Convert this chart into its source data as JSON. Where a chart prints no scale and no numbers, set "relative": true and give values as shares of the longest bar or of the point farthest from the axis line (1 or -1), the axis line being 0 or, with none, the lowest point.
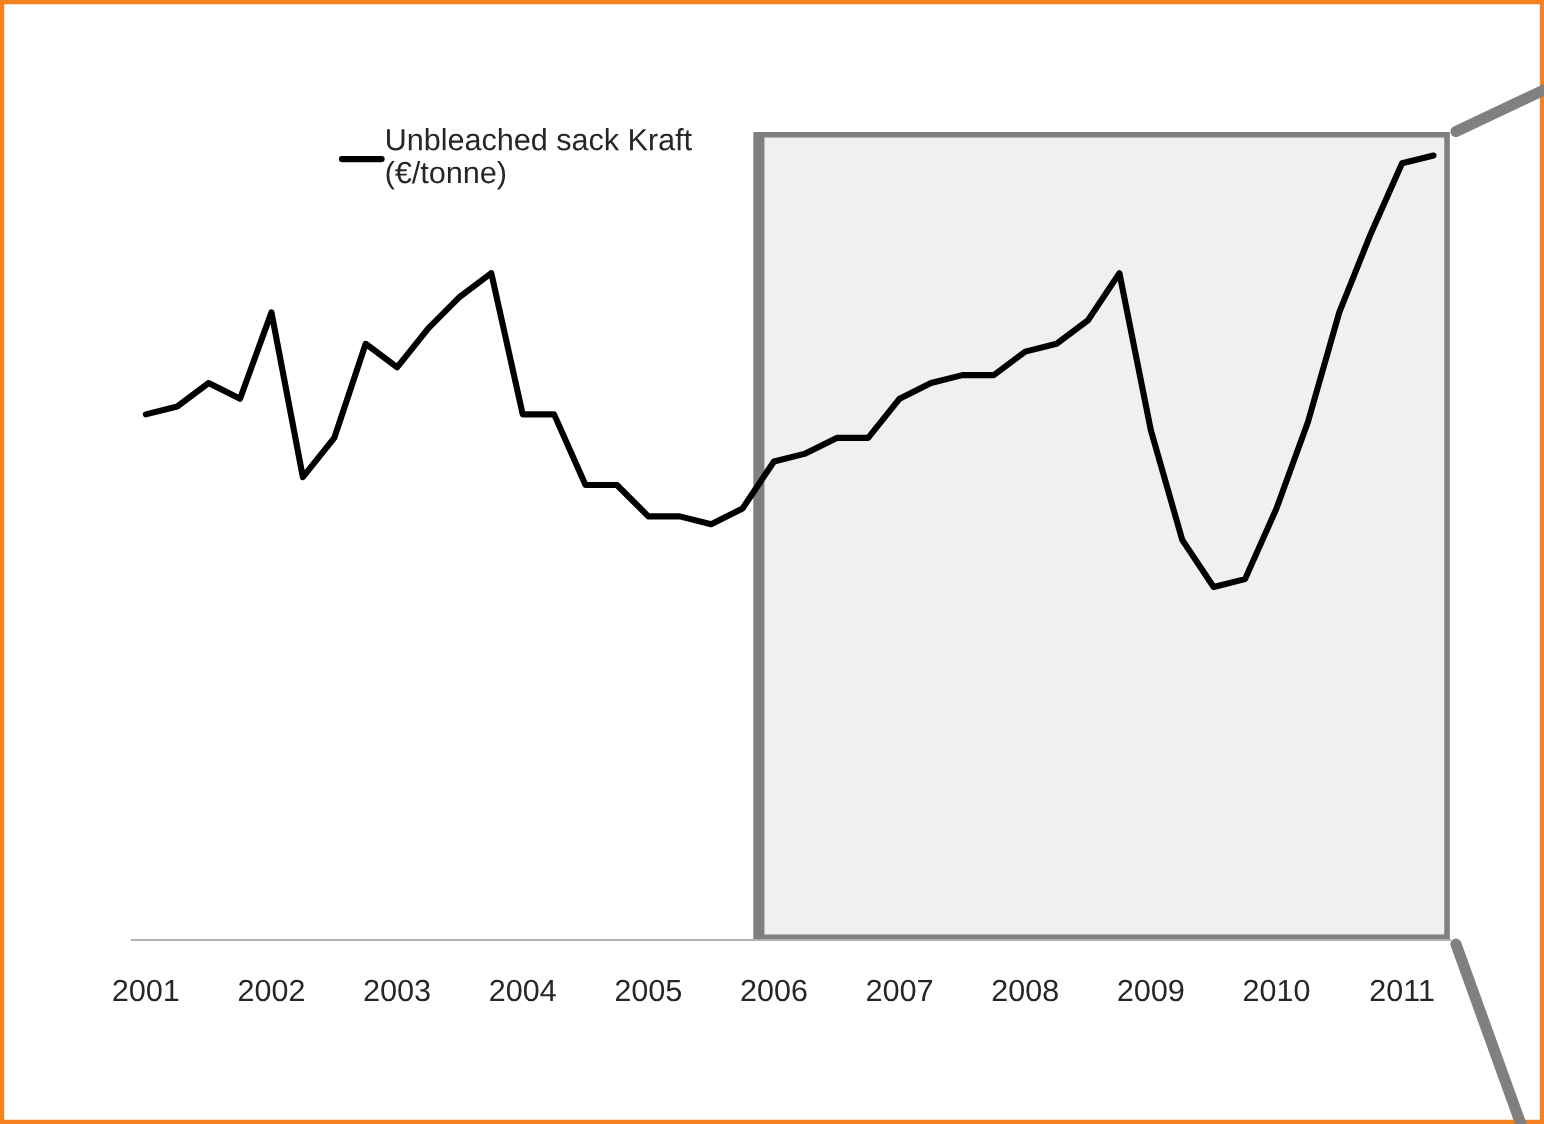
{
  "chart_data": {
    "type": "line",
    "relative": true,
    "x": [
      2001,
      2001.25,
      2001.5,
      2001.75,
      2002,
      2002.25,
      2002.5,
      2002.75,
      2003,
      2003.25,
      2003.5,
      2003.75,
      2004,
      2004.25,
      2004.5,
      2004.75,
      2005,
      2005.25,
      2005.5,
      2005.75,
      2006,
      2006.25,
      2006.5,
      2006.75,
      2007,
      2007.25,
      2007.5,
      2007.75,
      2008,
      2008.25,
      2008.5,
      2008.75,
      2009,
      2009.25,
      2009.5,
      2009.75,
      2010,
      2010.25,
      2010.5,
      2010.75,
      2011,
      2011.25
    ],
    "series": [
      {
        "name": "Unbleached sack Kraft\n(€/tonne)",
        "color": "#000000",
        "values": [
          0.67,
          0.68,
          0.71,
          0.69,
          0.8,
          0.59,
          0.64,
          0.76,
          0.73,
          0.78,
          0.82,
          0.85,
          0.67,
          0.67,
          0.58,
          0.58,
          0.54,
          0.54,
          0.53,
          0.55,
          0.61,
          0.62,
          0.64,
          0.64,
          0.69,
          0.71,
          0.72,
          0.72,
          0.75,
          0.76,
          0.79,
          0.85,
          0.65,
          0.51,
          0.45,
          0.46,
          0.55,
          0.66,
          0.8,
          0.9,
          0.99,
          1.0
        ]
      }
    ],
    "xlim": [
      2000.89,
      2011.38
    ],
    "xticks": [
      2001,
      2002,
      2003,
      2004,
      2005,
      2006,
      2007,
      2008,
      2009,
      2010,
      2011
    ],
    "bands": [
      {
        "axis": "x",
        "from": 2005.88,
        "to": 2011.38,
        "color": "#f0f0f0"
      }
    ],
    "legend": "top left",
    "grid": false,
    "line_style": "solid",
    "marker": "none"
  }
}
